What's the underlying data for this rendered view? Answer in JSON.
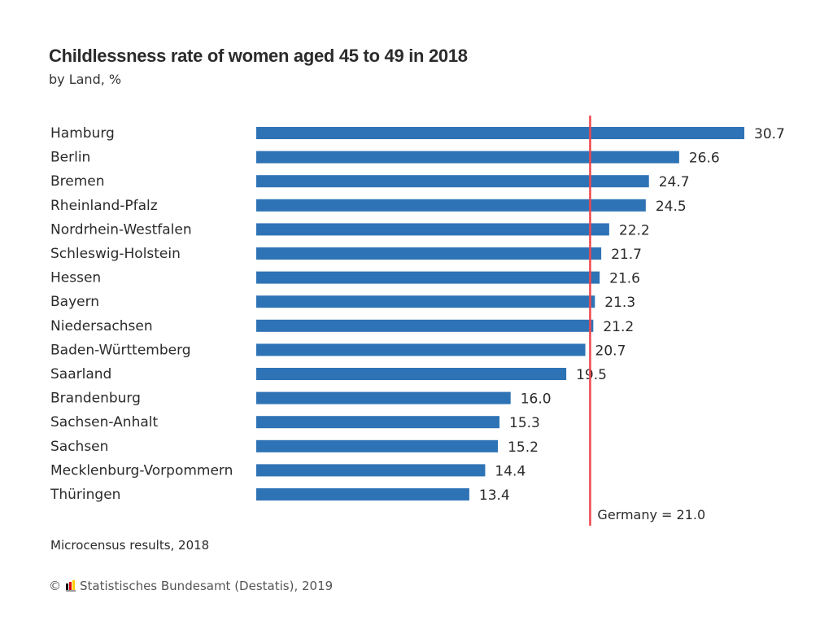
{
  "chart_data": {
    "type": "bar",
    "orientation": "horizontal",
    "title": "Childlessness rate of women aged 45 to 49 in 2018",
    "subtitle": "by Land, %",
    "xlabel": "",
    "ylabel": "",
    "xlim": [
      0,
      31
    ],
    "grid": false,
    "categories": [
      "Hamburg",
      "Berlin",
      "Bremen",
      "Rheinland-Pfalz",
      "Nordrhein-Westfalen",
      "Schleswig-Holstein",
      "Hessen",
      "Bayern",
      "Niedersachsen",
      "Baden-Württemberg",
      "Saarland",
      "Brandenburg",
      "Sachsen-Anhalt",
      "Sachsen",
      "Mecklenburg-Vorpommern",
      "Thüringen"
    ],
    "values": [
      30.7,
      26.6,
      24.7,
      24.5,
      22.2,
      21.7,
      21.6,
      21.3,
      21.2,
      20.7,
      19.5,
      16.0,
      15.3,
      15.2,
      14.4,
      13.4
    ],
    "value_labels": [
      "30.7",
      "26.6",
      "24.7",
      "24.5",
      "22.2",
      "21.7",
      "21.6",
      "21.3",
      "21.2",
      "20.7",
      "19.5",
      "16.0",
      "15.3",
      "15.2",
      "14.4",
      "13.4"
    ],
    "bar_color": "#2e73b5",
    "reference_line": {
      "value": 21.0,
      "label": "Germany = 21.0",
      "color": "#f0474f"
    }
  },
  "note": "Microcensus results, 2018",
  "footer": {
    "copyright_symbol": "©",
    "source": "Statistisches Bundesamt (Destatis), 2019",
    "logo_colors": [
      "#000000",
      "#dd0000",
      "#ffcc00"
    ]
  }
}
